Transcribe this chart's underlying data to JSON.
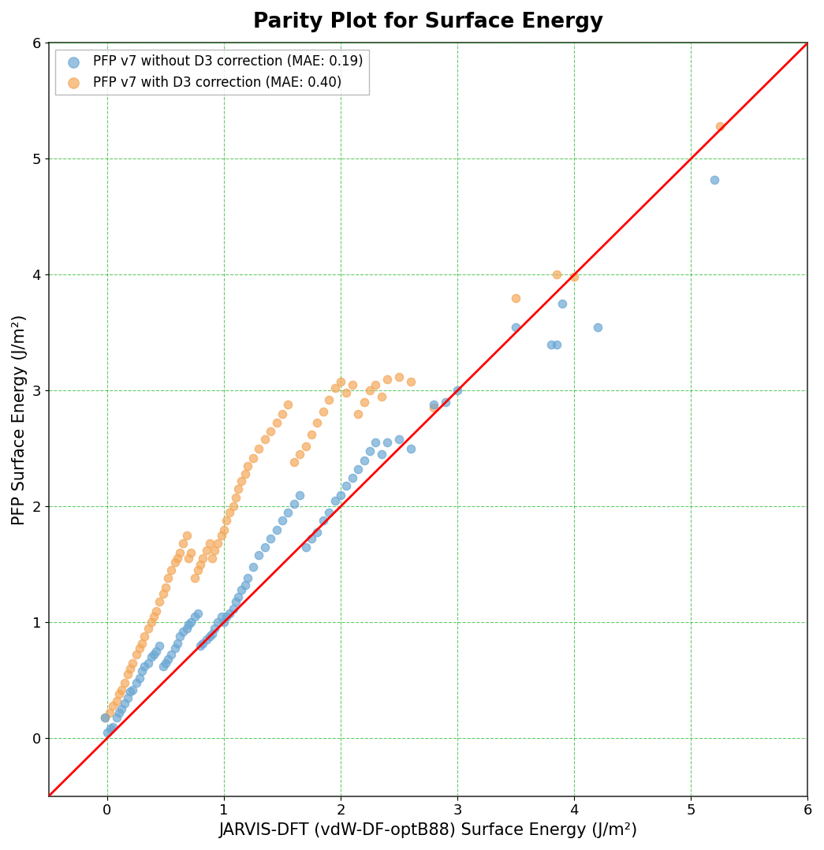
{
  "title": "Parity Plot for Surface Energy",
  "xlabel": "JARVIS-DFT (vdW-DF-optB88) Surface Energy (J/m²)",
  "ylabel": "PFP Surface Energy (J/m²)",
  "xlim": [
    -0.5,
    6.0
  ],
  "ylim": [
    -0.5,
    6.0
  ],
  "parity_line_color": "red",
  "grid_color": "#00AA00",
  "legend1_label": "PFP v7 without D3 correction (MAE: 0.19)",
  "legend2_label": "PFP v7 with D3 correction (MAE: 0.40)",
  "color_blue": "#6CA8D4",
  "color_orange": "#F4A85A",
  "alpha": 0.7,
  "marker_size": 55,
  "blue_x": [
    -0.02,
    0.0,
    0.03,
    0.05,
    0.08,
    0.1,
    0.12,
    0.15,
    0.18,
    0.2,
    0.22,
    0.25,
    0.28,
    0.3,
    0.32,
    0.35,
    0.38,
    0.4,
    0.42,
    0.45,
    0.48,
    0.5,
    0.52,
    0.55,
    0.58,
    0.6,
    0.62,
    0.65,
    0.68,
    0.7,
    0.72,
    0.75,
    0.78,
    0.8,
    0.82,
    0.85,
    0.88,
    0.9,
    0.92,
    0.95,
    0.98,
    1.0,
    1.02,
    1.05,
    1.08,
    1.1,
    1.12,
    1.15,
    1.18,
    1.2,
    1.25,
    1.3,
    1.35,
    1.4,
    1.45,
    1.5,
    1.55,
    1.6,
    1.65,
    1.7,
    1.75,
    1.8,
    1.85,
    1.9,
    1.95,
    2.0,
    2.05,
    2.1,
    2.15,
    2.2,
    2.25,
    2.3,
    2.35,
    2.4,
    2.5,
    2.6,
    2.8,
    2.9,
    3.0,
    3.5,
    3.8,
    3.85,
    3.9,
    4.2,
    5.2
  ],
  "blue_y": [
    0.18,
    0.05,
    0.08,
    0.1,
    0.18,
    0.22,
    0.25,
    0.3,
    0.35,
    0.4,
    0.42,
    0.48,
    0.52,
    0.58,
    0.62,
    0.65,
    0.7,
    0.72,
    0.75,
    0.8,
    0.62,
    0.65,
    0.68,
    0.72,
    0.78,
    0.82,
    0.88,
    0.92,
    0.95,
    0.98,
    1.0,
    1.05,
    1.08,
    0.8,
    0.82,
    0.85,
    0.88,
    0.9,
    0.95,
    1.0,
    1.05,
    1.0,
    1.05,
    1.08,
    1.12,
    1.18,
    1.22,
    1.28,
    1.32,
    1.38,
    1.48,
    1.58,
    1.65,
    1.72,
    1.8,
    1.88,
    1.95,
    2.02,
    2.1,
    1.65,
    1.72,
    1.78,
    1.88,
    1.95,
    2.05,
    2.1,
    2.18,
    2.25,
    2.32,
    2.4,
    2.48,
    2.55,
    2.45,
    2.55,
    2.58,
    2.5,
    2.88,
    2.9,
    3.0,
    3.55,
    3.4,
    3.4,
    3.75,
    3.55,
    4.82
  ],
  "orange_x": [
    -0.02,
    0.02,
    0.05,
    0.08,
    0.1,
    0.12,
    0.15,
    0.18,
    0.2,
    0.22,
    0.25,
    0.28,
    0.3,
    0.32,
    0.35,
    0.38,
    0.4,
    0.42,
    0.45,
    0.48,
    0.5,
    0.52,
    0.55,
    0.58,
    0.6,
    0.62,
    0.65,
    0.68,
    0.7,
    0.72,
    0.75,
    0.78,
    0.8,
    0.82,
    0.85,
    0.88,
    0.9,
    0.92,
    0.95,
    0.98,
    1.0,
    1.02,
    1.05,
    1.08,
    1.1,
    1.12,
    1.15,
    1.18,
    1.2,
    1.25,
    1.3,
    1.35,
    1.4,
    1.45,
    1.5,
    1.55,
    1.6,
    1.65,
    1.7,
    1.75,
    1.8,
    1.85,
    1.9,
    1.95,
    2.0,
    2.05,
    2.1,
    2.15,
    2.2,
    2.25,
    2.3,
    2.35,
    2.4,
    2.5,
    2.6,
    2.8,
    3.5,
    3.85,
    4.0,
    5.25
  ],
  "orange_y": [
    0.18,
    0.22,
    0.28,
    0.32,
    0.38,
    0.42,
    0.48,
    0.55,
    0.6,
    0.65,
    0.72,
    0.78,
    0.82,
    0.88,
    0.95,
    1.0,
    1.05,
    1.1,
    1.18,
    1.25,
    1.3,
    1.38,
    1.45,
    1.52,
    1.55,
    1.6,
    1.68,
    1.75,
    1.55,
    1.6,
    1.38,
    1.45,
    1.5,
    1.55,
    1.62,
    1.68,
    1.55,
    1.62,
    1.68,
    1.75,
    1.8,
    1.88,
    1.95,
    2.0,
    2.08,
    2.15,
    2.22,
    2.28,
    2.35,
    2.42,
    2.5,
    2.58,
    2.65,
    2.72,
    2.8,
    2.88,
    2.38,
    2.45,
    2.52,
    2.62,
    2.72,
    2.82,
    2.92,
    3.02,
    3.08,
    2.98,
    3.05,
    2.8,
    2.9,
    3.0,
    3.05,
    2.95,
    3.1,
    3.12,
    3.08,
    2.85,
    3.8,
    4.0,
    3.98,
    5.28
  ]
}
